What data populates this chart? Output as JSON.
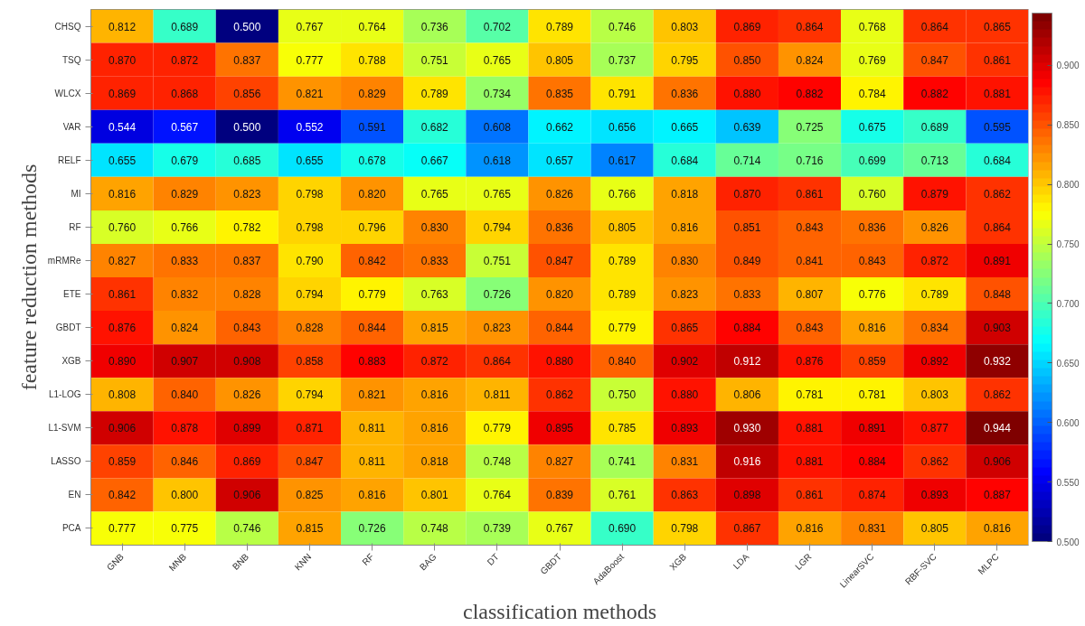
{
  "chart_data": {
    "type": "heatmap",
    "xlabel": "classification methods",
    "ylabel": "feature reduction methods",
    "categories": [
      "GNB",
      "MNB",
      "BNB",
      "KNN",
      "RF",
      "BAG",
      "DT",
      "GBDT",
      "AdaBoost",
      "XGB",
      "LDA",
      "LGR",
      "LinearSVC",
      "RBF-SVC",
      "MLPC"
    ],
    "y_categories": [
      "CHSQ",
      "TSQ",
      "WLCX",
      "VAR",
      "RELF",
      "MI",
      "RF",
      "mRMRe",
      "ETE",
      "GBDT",
      "XGB",
      "L1-LOG",
      "L1-SVM",
      "LASSO",
      "EN",
      "PCA"
    ],
    "cells": [
      [
        0.812,
        0.689,
        0.5,
        0.767,
        0.764,
        0.736,
        0.702,
        0.789,
        0.746,
        0.803,
        0.869,
        0.864,
        0.768,
        0.864,
        0.865
      ],
      [
        0.87,
        0.872,
        0.837,
        0.777,
        0.788,
        0.751,
        0.765,
        0.805,
        0.737,
        0.795,
        0.85,
        0.824,
        0.769,
        0.847,
        0.861
      ],
      [
        0.869,
        0.868,
        0.856,
        0.821,
        0.829,
        0.789,
        0.734,
        0.835,
        0.791,
        0.836,
        0.88,
        0.882,
        0.784,
        0.882,
        0.881
      ],
      [
        0.544,
        0.567,
        0.5,
        0.552,
        0.591,
        0.682,
        0.608,
        0.662,
        0.656,
        0.665,
        0.639,
        0.725,
        0.675,
        0.689,
        0.595
      ],
      [
        0.655,
        0.679,
        0.685,
        0.655,
        0.678,
        0.667,
        0.618,
        0.657,
        0.617,
        0.684,
        0.714,
        0.716,
        0.699,
        0.713,
        0.684
      ],
      [
        0.816,
        0.829,
        0.823,
        0.798,
        0.82,
        0.765,
        0.765,
        0.826,
        0.766,
        0.818,
        0.87,
        0.861,
        0.76,
        0.879,
        0.862
      ],
      [
        0.76,
        0.766,
        0.782,
        0.798,
        0.796,
        0.83,
        0.794,
        0.836,
        0.805,
        0.816,
        0.851,
        0.843,
        0.836,
        0.826,
        0.864
      ],
      [
        0.827,
        0.833,
        0.837,
        0.79,
        0.842,
        0.833,
        0.751,
        0.847,
        0.789,
        0.83,
        0.849,
        0.841,
        0.843,
        0.872,
        0.891
      ],
      [
        0.861,
        0.832,
        0.828,
        0.794,
        0.779,
        0.763,
        0.726,
        0.82,
        0.789,
        0.823,
        0.833,
        0.807,
        0.776,
        0.789,
        0.848
      ],
      [
        0.876,
        0.824,
        0.843,
        0.828,
        0.844,
        0.815,
        0.823,
        0.844,
        0.779,
        0.865,
        0.884,
        0.843,
        0.816,
        0.834,
        0.903
      ],
      [
        0.89,
        0.907,
        0.908,
        0.858,
        0.883,
        0.872,
        0.864,
        0.88,
        0.84,
        0.902,
        0.912,
        0.876,
        0.859,
        0.892,
        0.932
      ],
      [
        0.808,
        0.84,
        0.826,
        0.794,
        0.821,
        0.816,
        0.811,
        0.862,
        0.75,
        0.88,
        0.806,
        0.781,
        0.781,
        0.803,
        0.862
      ],
      [
        0.906,
        0.878,
        0.899,
        0.871,
        0.811,
        0.816,
        0.779,
        0.895,
        0.785,
        0.893,
        0.93,
        0.881,
        0.891,
        0.877,
        0.944
      ],
      [
        0.859,
        0.846,
        0.869,
        0.847,
        0.811,
        0.818,
        0.748,
        0.827,
        0.741,
        0.831,
        0.916,
        0.881,
        0.884,
        0.862,
        0.906
      ],
      [
        0.842,
        0.8,
        0.906,
        0.825,
        0.816,
        0.801,
        0.764,
        0.839,
        0.761,
        0.863,
        0.898,
        0.861,
        0.874,
        0.893,
        0.887
      ],
      [
        0.777,
        0.775,
        0.746,
        0.815,
        0.726,
        0.748,
        0.739,
        0.767,
        0.69,
        0.798,
        0.867,
        0.816,
        0.831,
        0.805,
        0.816
      ]
    ],
    "cell_labels": [
      [
        "0.812",
        "0.689",
        "0.500",
        "0.767",
        "0.764",
        "0.736",
        "0.702",
        "0.789",
        "0.746",
        "0.803",
        "0.869",
        "0.864",
        "0.768",
        "0.864",
        "0.865"
      ],
      [
        "0.870",
        "0.872",
        "0.837",
        "0.777",
        "0.788",
        "0.751",
        "0.765",
        "0.805",
        "0.737",
        "0.795",
        "0.850",
        "0.824",
        "0.769",
        "0.847",
        "0.861"
      ],
      [
        "0.869",
        "0.868",
        "0.856",
        "0.821",
        "0.829",
        "0.789",
        "0.734",
        "0.835",
        "0.791",
        "0.836",
        "0.880",
        "0.882",
        "0.784",
        "0.882",
        "0.881"
      ],
      [
        "0.544",
        "0.567",
        "0.500",
        "0.552",
        "0.591",
        "0.682",
        "0.608",
        "0.662",
        "0.656",
        "0.665",
        "0.639",
        "0.725",
        "0.675",
        "0.689",
        "0.595"
      ],
      [
        "0.655",
        "0.679",
        "0.685",
        "0.655",
        "0.678",
        "0.667",
        "0.618",
        "0.657",
        "0.617",
        "0.684",
        "0.714",
        "0.716",
        "0.699",
        "0.713",
        "0.684"
      ],
      [
        "0.816",
        "0.829",
        "0.823",
        "0.798",
        "0.820",
        "0.765",
        "0.765",
        "0.826",
        "0.766",
        "0.818",
        "0.870",
        "0.861",
        "0.760",
        "0.879",
        "0.862"
      ],
      [
        "0.760",
        "0.766",
        "0.782",
        "0.798",
        "0.796",
        "0.830",
        "0.794",
        "0.836",
        "0.805",
        "0.816",
        "0.851",
        "0.843",
        "0.836",
        "0.826",
        "0.864"
      ],
      [
        "0.827",
        "0.833",
        "0.837",
        "0.790",
        "0.842",
        "0.833",
        "0.751",
        "0.847",
        "0.789",
        "0.830",
        "0.849",
        "0.841",
        "0.843",
        "0.872",
        "0.891"
      ],
      [
        "0.861",
        "0.832",
        "0.828",
        "0.794",
        "0.779",
        "0.763",
        "0.726",
        "0.820",
        "0.789",
        "0.823",
        "0.833",
        "0.807",
        "0.776",
        "0.789",
        "0.848"
      ],
      [
        "0.876",
        "0.824",
        "0.843",
        "0.828",
        "0.844",
        "0.815",
        "0.823",
        "0.844",
        "0.779",
        "0.865",
        "0.884",
        "0.843",
        "0.816",
        "0.834",
        "0.903"
      ],
      [
        "0.890",
        "0.907",
        "0.908",
        "0.858",
        "0.883",
        "0.872",
        "0.864",
        "0.880",
        "0.840",
        "0.902",
        "0.912",
        "0.876",
        "0.859",
        "0.892",
        "0.932"
      ],
      [
        "0.808",
        "0.840",
        "0.826",
        "0.794",
        "0.821",
        "0.816",
        "0.811",
        "0.862",
        "0.750",
        "0.880",
        "0.806",
        "0.781",
        "0.781",
        "0.803",
        "0.862"
      ],
      [
        "0.906",
        "0.878",
        "0.899",
        "0.871",
        "0.811",
        "0.816",
        "0.779",
        "0.895",
        "0.785",
        "0.893",
        "0.930",
        "0.881",
        "0.891",
        "0.877",
        "0.944"
      ],
      [
        "0.859",
        "0.846",
        "0.869",
        "0.847",
        "0.811",
        "0.818",
        "0.748",
        "0.827",
        "0.741",
        "0.831",
        "0.916",
        "0.881",
        "0.884",
        "0.862",
        "0.906"
      ],
      [
        "0.842",
        "0.800",
        "0.906",
        "0.825",
        "0.816",
        "0.801",
        "0.764",
        "0.839",
        "0.761",
        "0.863",
        "0.898",
        "0.861",
        "0.874",
        "0.893",
        "0.887"
      ],
      [
        "0.777",
        "0.775",
        "0.746",
        "0.815",
        "0.726",
        "0.748",
        "0.739",
        "0.767",
        "0.690",
        "0.798",
        "0.867",
        "0.816",
        "0.831",
        "0.805",
        "0.816"
      ]
    ],
    "clim": [
      0.5,
      0.944
    ],
    "cticks": [
      {
        "value": 0.5,
        "label": "0.500"
      },
      {
        "value": 0.55,
        "label": "0.550"
      },
      {
        "value": 0.6,
        "label": "0.600"
      },
      {
        "value": 0.65,
        "label": "0.650"
      },
      {
        "value": 0.7,
        "label": "0.700"
      },
      {
        "value": 0.75,
        "label": "0.750"
      },
      {
        "value": 0.8,
        "label": "0.800"
      },
      {
        "value": 0.85,
        "label": "0.850"
      },
      {
        "value": 0.9,
        "label": "0.900"
      }
    ]
  }
}
